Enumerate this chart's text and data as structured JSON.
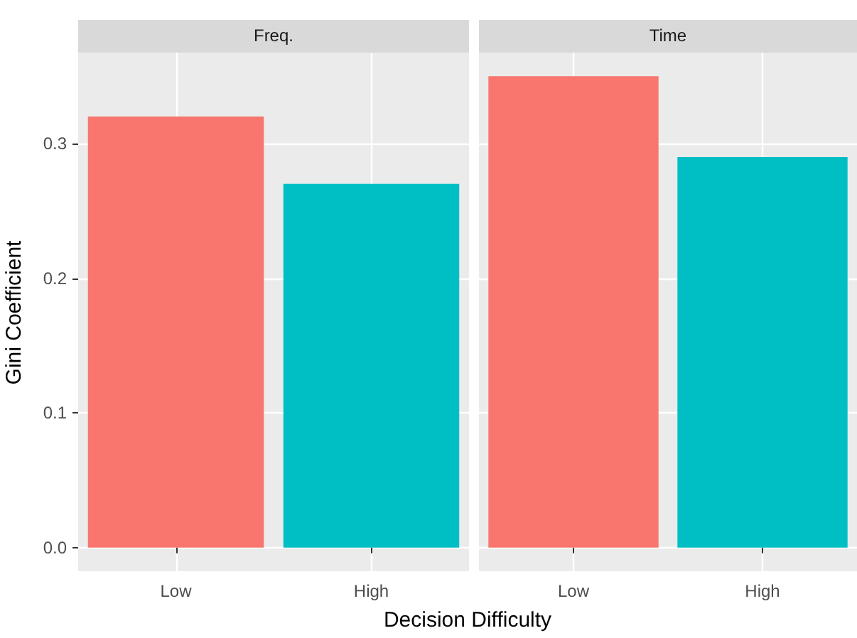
{
  "chart_data": [
    {
      "type": "bar",
      "title": "Freq.",
      "xlabel": "Decision Difficulty",
      "ylabel": "Gini Coefficient",
      "categories": [
        "Low",
        "High"
      ],
      "values": [
        0.32,
        0.27
      ],
      "colors": [
        "#f8766d",
        "#00bfc4"
      ],
      "ylim": [
        -0.0175,
        0.3675
      ],
      "yticks": [
        {
          "value": 0,
          "label": "0.0"
        },
        {
          "value": 0.1,
          "label": "0.1"
        },
        {
          "value": 0.2,
          "label": "0.2"
        },
        {
          "value": 0.3,
          "label": "0.3"
        }
      ],
      "grid": true
    },
    {
      "type": "bar",
      "title": "Time",
      "categories": [
        "Low",
        "High"
      ],
      "values": [
        0.35,
        0.29
      ],
      "colors": [
        "#f8766d",
        "#00bfc4"
      ],
      "ylim": [
        -0.0175,
        0.3675
      ],
      "yticks": [
        0,
        0.1,
        0.2,
        0.3
      ],
      "grid": true,
      "tick_labels": "x"
    }
  ]
}
